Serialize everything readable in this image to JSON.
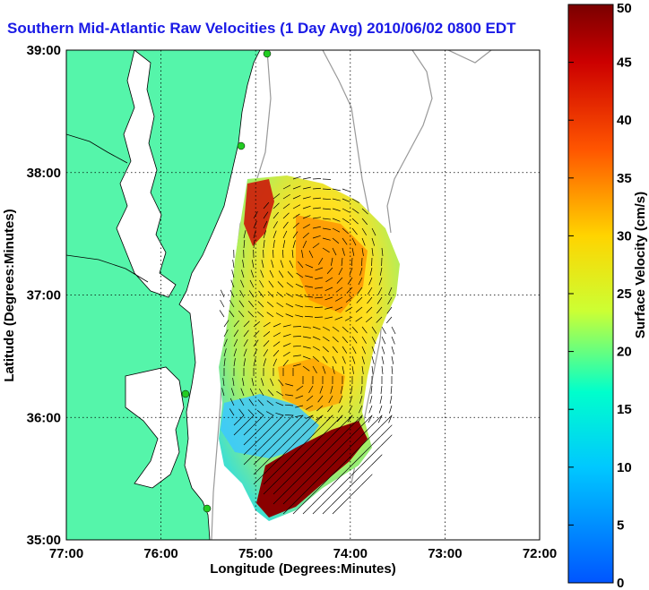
{
  "title": "Southern Mid-Atlantic Raw Velocities (1 Day Avg) 2010/06/02 0800 EDT",
  "map": {
    "xlabel": "Longitude (Degrees:Minutes)",
    "ylabel": "Latitude (Degrees:Minutes)",
    "x_ticks": [
      "77:00",
      "76:00",
      "75:00",
      "74:00",
      "73:00",
      "72:00"
    ],
    "y_ticks": [
      "39:00",
      "38:00",
      "37:00",
      "36:00",
      "35:00"
    ],
    "lon_range": [
      -77,
      -72
    ],
    "lat_range": [
      35,
      39
    ],
    "grid": true,
    "land_color": "#55f5aa",
    "contour_color": "#999999",
    "station_color": "#22cc22"
  },
  "colorbar": {
    "label": "Surface Velocity (cm/s)",
    "ticks": [
      "0",
      "5",
      "10",
      "15",
      "20",
      "25",
      "30",
      "35",
      "40",
      "45",
      "50"
    ],
    "range": [
      0,
      50
    ],
    "colors": [
      "#0055ff",
      "#00c8ff",
      "#00ffcc",
      "#ccff33",
      "#ffd400",
      "#ff5500",
      "#cc0000",
      "#7a0000"
    ]
  }
}
